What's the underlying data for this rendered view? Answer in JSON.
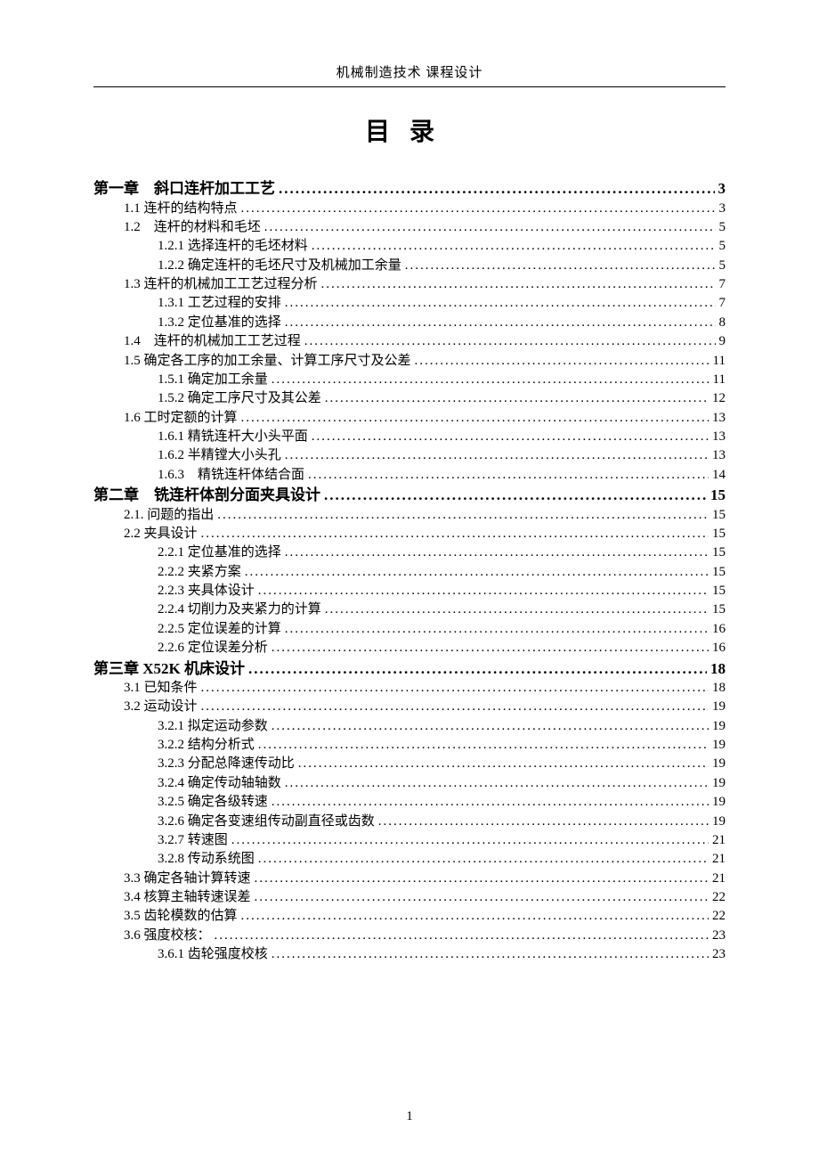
{
  "header": {
    "running_head": "机械制造技术  课程设计"
  },
  "title": "目录",
  "footer": {
    "page_number": "1"
  },
  "toc": {
    "entries": [
      {
        "level": 0,
        "label": "第一章　斜口连杆加工工艺",
        "page": "3"
      },
      {
        "level": 1,
        "label": "1.1  连杆的结构特点",
        "page": "3"
      },
      {
        "level": 1,
        "label": "1.2　连杆的材料和毛坯",
        "page": "5"
      },
      {
        "level": 2,
        "label": "1.2.1  选择连杆的毛坯材料",
        "page": "5"
      },
      {
        "level": 2,
        "label": "1.2.2  确定连杆的毛坯尺寸及机械加工余量",
        "page": "5"
      },
      {
        "level": 1,
        "label": "1.3  连杆的机械加工工艺过程分析",
        "page": "7"
      },
      {
        "level": 2,
        "label": "1.3.1  工艺过程的安排",
        "page": "7"
      },
      {
        "level": 2,
        "label": "1.3.2  定位基准的选择",
        "page": "8"
      },
      {
        "level": 1,
        "label": "1.4　连杆的机械加工工艺过程",
        "page": "9"
      },
      {
        "level": 1,
        "label": "1.5  确定各工序的加工余量、计算工序尺寸及公差",
        "page": "11"
      },
      {
        "level": 2,
        "label": "1.5.1  确定加工余量",
        "page": "11"
      },
      {
        "level": 2,
        "label": "1.5.2  确定工序尺寸及其公差",
        "page": "12"
      },
      {
        "level": 1,
        "label": "1.6  工时定额的计算",
        "page": "13"
      },
      {
        "level": 2,
        "label": "1.6.1  精铣连杆大小头平面",
        "page": "13"
      },
      {
        "level": 2,
        "label": "1.6.2  半精镗大小头孔",
        "page": "13"
      },
      {
        "level": 2,
        "label": "1.6.3　精铣连杆体结合面",
        "page": "14"
      },
      {
        "level": 0,
        "label": "第二章　铣连杆体剖分面夹具设计",
        "page": "15"
      },
      {
        "level": 1,
        "label": "2.1.  问题的指出",
        "page": "15"
      },
      {
        "level": 1,
        "label": "2.2  夹具设计",
        "page": "15"
      },
      {
        "level": 2,
        "label": "2.2.1  定位基准的选择",
        "page": "15"
      },
      {
        "level": 2,
        "label": "2.2.2  夹紧方案",
        "page": "15"
      },
      {
        "level": 2,
        "label": "2.2.3  夹具体设计",
        "page": "15"
      },
      {
        "level": 2,
        "label": "2.2.4  切削力及夹紧力的计算",
        "page": "15"
      },
      {
        "level": 2,
        "label": "2.2.5  定位误差的计算",
        "page": "16"
      },
      {
        "level": 2,
        "label": "2.2.6  定位误差分析",
        "page": "16"
      },
      {
        "level": 0,
        "label": "第三章  X52K 机床设计",
        "page": "18"
      },
      {
        "level": 1,
        "label": "3.1 已知条件",
        "page": "18"
      },
      {
        "level": 1,
        "label": "3.2  运动设计",
        "page": "19"
      },
      {
        "level": 2,
        "label": "3.2.1  拟定运动参数",
        "page": "19"
      },
      {
        "level": 2,
        "label": "3.2.2 结构分析式",
        "page": "19"
      },
      {
        "level": 2,
        "label": "3.2.3 分配总降速传动比",
        "page": "19"
      },
      {
        "level": 2,
        "label": "3.2.4  确定传动轴轴数",
        "page": "19"
      },
      {
        "level": 2,
        "label": "3.2.5 确定各级转速",
        "page": "19"
      },
      {
        "level": 2,
        "label": "3.2.6 确定各变速组传动副直径或齿数",
        "page": "19"
      },
      {
        "level": 2,
        "label": "3.2.7  转速图",
        "page": "21"
      },
      {
        "level": 2,
        "label": "3.2.8 传动系统图",
        "page": "21"
      },
      {
        "level": 1,
        "label": "3.3  确定各轴计算转速",
        "page": "21"
      },
      {
        "level": 1,
        "label": "3.4  核算主轴转速误差",
        "page": "22"
      },
      {
        "level": 1,
        "label": "3.5  齿轮模数的估算",
        "page": "22"
      },
      {
        "level": 1,
        "label": "3.6 强度校核：",
        "page": "23"
      },
      {
        "level": 2,
        "label": "3.6.1 齿轮强度校核",
        "page": "23"
      }
    ]
  }
}
